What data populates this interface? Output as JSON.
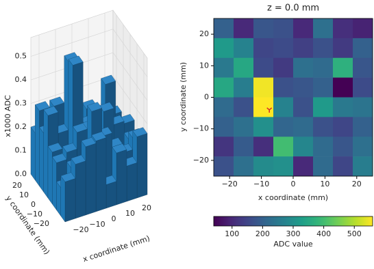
{
  "chart_data": [
    {
      "type": "bar3d",
      "xlabel": "x coordinate (mm)",
      "ylabel": "y coordinate (mm)",
      "zlabel": "x1000 ADC",
      "xlim": [
        -25,
        25
      ],
      "ylim": [
        -25,
        25
      ],
      "zlim": [
        0,
        0.58
      ],
      "xticks": [
        {
          "value": -20,
          "label": "−20"
        },
        {
          "value": -10,
          "label": "−10"
        },
        0,
        10,
        20
      ],
      "yticks": [
        {
          "value": -20,
          "label": "−20"
        },
        {
          "value": -10,
          "label": "−10"
        },
        0,
        10,
        20
      ],
      "zticks": [
        {
          "value": 0,
          "label": "0.0"
        },
        0.1,
        0.2,
        0.3,
        0.4,
        0.5
      ],
      "color": "#1f77b4",
      "values": [
        [
          0.2,
          0.1,
          0.18,
          0.17,
          0.1,
          0.23,
          0.11,
          0.09
        ],
        [
          0.32,
          0.27,
          0.15,
          0.16,
          0.14,
          0.17,
          0.13,
          0.2
        ],
        [
          0.25,
          0.35,
          0.16,
          0.13,
          0.23,
          0.22,
          0.37,
          0.18
        ],
        [
          0.35,
          0.26,
          0.55,
          0.17,
          0.18,
          0.2,
          0.04,
          0.16
        ],
        [
          0.22,
          0.17,
          0.56,
          0.27,
          0.17,
          0.32,
          0.25,
          0.24
        ],
        [
          0.2,
          0.23,
          0.3,
          0.21,
          0.22,
          0.17,
          0.15,
          0.2
        ],
        [
          0.12,
          0.19,
          0.11,
          0.4,
          0.28,
          0.22,
          0.18,
          0.23
        ],
        [
          0.17,
          0.23,
          0.29,
          0.3,
          0.1,
          0.22,
          0.15,
          0.26
        ]
      ]
    },
    {
      "type": "heatmap",
      "title": "z = 0.0 mm",
      "xlabel": "x coordinate (mm)",
      "ylabel": "y coordinate (mm)",
      "colorbar_label": "ADC value",
      "xlim": [
        -25,
        25
      ],
      "ylim": [
        -25,
        25
      ],
      "clim": [
        40,
        560
      ],
      "colormap": "viridis",
      "xticks": [
        {
          "value": -20,
          "label": "−20"
        },
        {
          "value": -10,
          "label": "−10"
        },
        0,
        10,
        20
      ],
      "yticks": [
        {
          "value": -20,
          "label": "−20"
        },
        {
          "value": -10,
          "label": "−10"
        },
        0,
        10,
        20
      ],
      "cticks": [
        100,
        200,
        300,
        400,
        500
      ],
      "marker": {
        "x": -7.5,
        "y": -4,
        "color": "#d62728"
      },
      "values": [
        [
          200,
          100,
          180,
          170,
          100,
          230,
          110,
          90
        ],
        [
          320,
          270,
          150,
          160,
          140,
          170,
          130,
          200
        ],
        [
          250,
          350,
          160,
          130,
          230,
          220,
          370,
          180
        ],
        [
          350,
          260,
          550,
          170,
          180,
          200,
          40,
          160
        ],
        [
          220,
          170,
          560,
          270,
          170,
          320,
          250,
          240
        ],
        [
          200,
          230,
          300,
          210,
          220,
          170,
          150,
          200
        ],
        [
          120,
          190,
          110,
          400,
          280,
          220,
          180,
          230
        ],
        [
          170,
          230,
          290,
          300,
          100,
          220,
          150,
          260
        ]
      ]
    }
  ]
}
